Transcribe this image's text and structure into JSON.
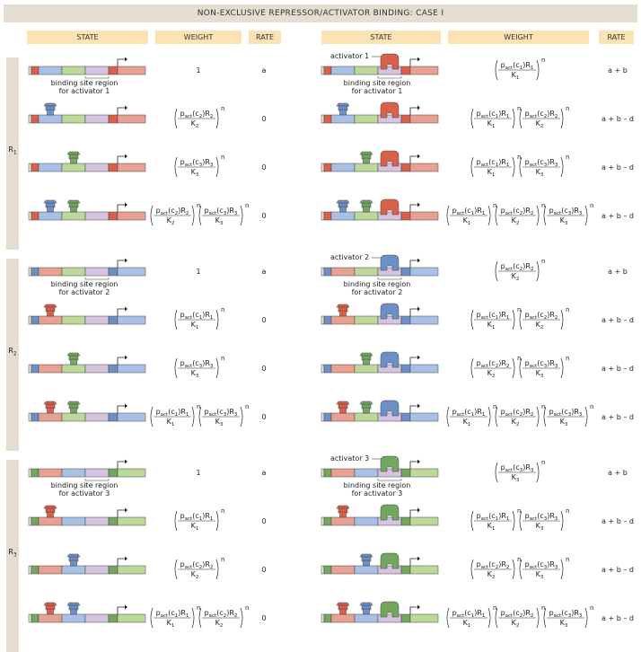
{
  "banner": "NON-EXCLUSIVE REPRESSOR/ACTIVATOR BINDING: CASE I",
  "headers": {
    "state_left": "STATE",
    "weight_left": "WEIGHT",
    "rate_left": "RATE",
    "state_right": "STATE",
    "weight_right": "WEIGHT",
    "rate_right": "RATE"
  },
  "colors": {
    "red": "#d9604a",
    "blue": "#6d8fc8",
    "green": "#73a65e",
    "red_light": "#e8a090",
    "blue_light": "#a9c0e6",
    "green_light": "#bcd99a",
    "purple_light": "#d5c3df"
  },
  "groups": [
    {
      "label": "R",
      "sub": "1",
      "color": "red",
      "order": [
        "blue",
        "green",
        "purple"
      ],
      "activator_label": "activator 1",
      "site_label_line1": "binding site region",
      "site_label_line2": "for activator 1",
      "rows": [
        {
          "left_reps": [],
          "left_weight": [],
          "left_rate": "a",
          "right_reps": [],
          "right_weight": [
            {
              "c": "1",
              "r": "1",
              "k": "1"
            }
          ],
          "right_rate": "a + b"
        },
        {
          "left_reps": [
            "blue"
          ],
          "left_weight": [
            {
              "c": "2",
              "r": "2",
              "k": "2"
            }
          ],
          "left_rate": "0",
          "right_reps": [
            "blue"
          ],
          "right_weight": [
            {
              "c": "1",
              "r": "1",
              "k": "1"
            },
            {
              "c": "2",
              "r": "2",
              "k": "2"
            }
          ],
          "right_rate": "a + b – d"
        },
        {
          "left_reps": [
            "green"
          ],
          "left_weight": [
            {
              "c": "3",
              "r": "3",
              "k": "3"
            }
          ],
          "left_rate": "0",
          "right_reps": [
            "green"
          ],
          "right_weight": [
            {
              "c": "1",
              "r": "1",
              "k": "1"
            },
            {
              "c": "3",
              "r": "3",
              "k": "3"
            }
          ],
          "right_rate": "a + b – d"
        },
        {
          "left_reps": [
            "blue",
            "green"
          ],
          "left_weight": [
            {
              "c": "2",
              "r": "2",
              "k": "2"
            },
            {
              "c": "3",
              "r": "3",
              "k": "3"
            }
          ],
          "left_rate": "0",
          "right_reps": [
            "blue",
            "green"
          ],
          "right_weight": [
            {
              "c": "1",
              "r": "1",
              "k": "1"
            },
            {
              "c": "2",
              "r": "2",
              "k": "2"
            },
            {
              "c": "3",
              "r": "3",
              "k": "3"
            }
          ],
          "right_rate": "a + b – d"
        }
      ]
    },
    {
      "label": "R",
      "sub": "2",
      "color": "blue",
      "order": [
        "red",
        "green",
        "purple"
      ],
      "activator_label": "activator 2",
      "site_label_line1": "binding site region",
      "site_label_line2": "for activator 2",
      "rows": [
        {
          "left_reps": [],
          "left_weight": [],
          "left_rate": "a",
          "right_reps": [],
          "right_weight": [
            {
              "c": "2",
              "r": "2",
              "k": "2"
            }
          ],
          "right_rate": "a + b"
        },
        {
          "left_reps": [
            "red"
          ],
          "left_weight": [
            {
              "c": "1",
              "r": "1",
              "k": "1"
            }
          ],
          "left_rate": "0",
          "right_reps": [
            "red"
          ],
          "right_weight": [
            {
              "c": "1",
              "r": "1",
              "k": "1"
            },
            {
              "c": "2",
              "r": "2",
              "k": "2"
            }
          ],
          "right_rate": "a + b – d"
        },
        {
          "left_reps": [
            "green"
          ],
          "left_weight": [
            {
              "c": "3",
              "r": "3",
              "k": "3"
            }
          ],
          "left_rate": "0",
          "right_reps": [
            "green"
          ],
          "right_weight": [
            {
              "c": "2",
              "r": "2",
              "k": "2"
            },
            {
              "c": "3",
              "r": "3",
              "k": "3"
            }
          ],
          "right_rate": "a + b – d"
        },
        {
          "left_reps": [
            "red",
            "green"
          ],
          "left_weight": [
            {
              "c": "1",
              "r": "1",
              "k": "1"
            },
            {
              "c": "3",
              "r": "3",
              "k": "3"
            }
          ],
          "left_rate": "0",
          "right_reps": [
            "red",
            "green"
          ],
          "right_weight": [
            {
              "c": "1",
              "r": "1",
              "k": "1"
            },
            {
              "c": "2",
              "r": "2",
              "k": "2"
            },
            {
              "c": "3",
              "r": "3",
              "k": "3"
            }
          ],
          "right_rate": "a + b – d"
        }
      ]
    },
    {
      "label": "R",
      "sub": "3",
      "color": "green",
      "order": [
        "red",
        "blue",
        "purple"
      ],
      "activator_label": "activator 3",
      "site_label_line1": "binding site region",
      "site_label_line2": "for activator 3",
      "rows": [
        {
          "left_reps": [],
          "left_weight": [],
          "left_rate": "a",
          "right_reps": [],
          "right_weight": [
            {
              "c": "3",
              "r": "3",
              "k": "3"
            }
          ],
          "right_rate": "a + b"
        },
        {
          "left_reps": [
            "red"
          ],
          "left_weight": [
            {
              "c": "1",
              "r": "1",
              "k": "1"
            }
          ],
          "left_rate": "0",
          "right_reps": [
            "red"
          ],
          "right_weight": [
            {
              "c": "1",
              "r": "1",
              "k": "1"
            },
            {
              "c": "3",
              "r": "3",
              "k": "3"
            }
          ],
          "right_rate": "a + b – d"
        },
        {
          "left_reps": [
            "blue"
          ],
          "left_weight": [
            {
              "c": "2",
              "r": "2",
              "k": "2"
            }
          ],
          "left_rate": "0",
          "right_reps": [
            "blue"
          ],
          "right_weight": [
            {
              "c": "2",
              "r": "2",
              "k": "2"
            },
            {
              "c": "3",
              "r": "3",
              "k": "3"
            }
          ],
          "right_rate": "a + b – d"
        },
        {
          "left_reps": [
            "red",
            "blue"
          ],
          "left_weight": [
            {
              "c": "1",
              "r": "1",
              "k": "1"
            },
            {
              "c": "2",
              "r": "2",
              "k": "2"
            }
          ],
          "left_rate": "0",
          "right_reps": [
            "red",
            "blue"
          ],
          "right_weight": [
            {
              "c": "1",
              "r": "1",
              "k": "1"
            },
            {
              "c": "2",
              "r": "2",
              "k": "2"
            },
            {
              "c": "3",
              "r": "3",
              "k": "3"
            }
          ],
          "right_rate": "a + b – d"
        }
      ]
    }
  ],
  "unit_weight": "1",
  "formula": {
    "p": "p",
    "act": "act",
    "c": "c",
    "R": "R",
    "K": "K",
    "n": "n"
  }
}
